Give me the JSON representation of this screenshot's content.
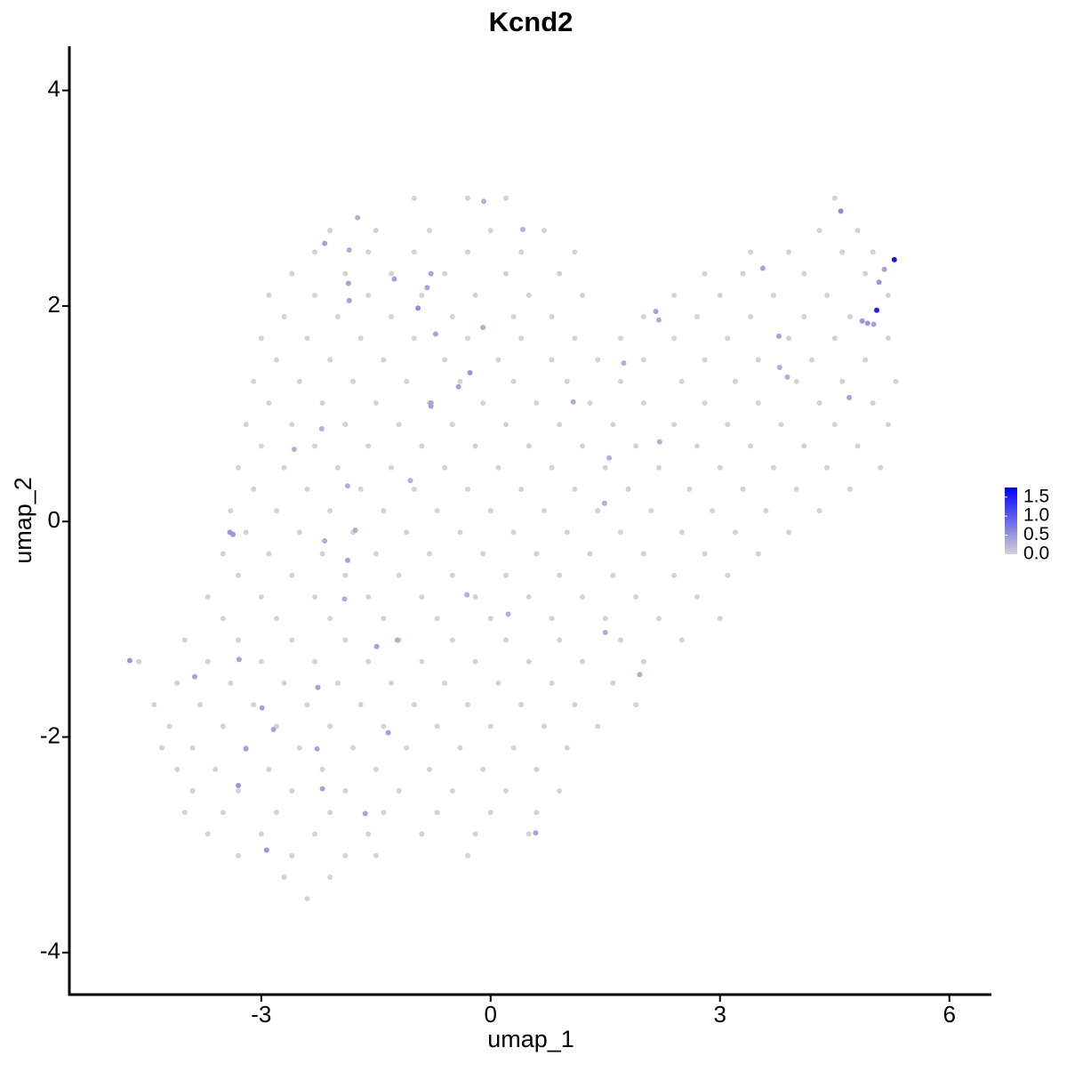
{
  "chart_data": {
    "type": "scatter",
    "title": "Kcnd2",
    "x_label": "umap_1",
    "y_label": "umap_2",
    "xlim": [
      -5.51,
      6.55
    ],
    "ylim": [
      -4.39,
      4.41
    ],
    "xticks": [
      -3,
      0,
      3,
      6
    ],
    "yticks": [
      -4,
      -2,
      0,
      2,
      4
    ],
    "color_low": "#d3d3d3",
    "color_high": "#0000ff",
    "clim": [
      0,
      1.75
    ],
    "colorbar_ticks": [
      {
        "value": 0,
        "label": "0.0"
      },
      0.5,
      {
        "value": 1,
        "label": "1.0"
      },
      1.5
    ],
    "x": [
      -1.0,
      -0.3,
      0.2,
      4.5,
      -2.1,
      -1.5,
      -0.8,
      0.0,
      0.7,
      4.3,
      4.8,
      -2.3,
      -1.6,
      -1.0,
      -0.3,
      0.4,
      1.1,
      3.4,
      3.9,
      4.6,
      5.0,
      -2.6,
      -1.9,
      -1.3,
      -0.6,
      0.2,
      0.9,
      2.8,
      3.3,
      4.1,
      4.9,
      -2.9,
      -2.3,
      -1.6,
      -0.9,
      -0.2,
      0.5,
      1.2,
      2.4,
      3.0,
      3.7,
      4.4,
      5.2,
      -2.7,
      -2.0,
      -1.3,
      -0.5,
      0.3,
      0.8,
      2.0,
      2.7,
      3.4,
      4.1,
      4.7,
      -3.0,
      -2.4,
      -1.7,
      -1.0,
      -0.3,
      0.4,
      1.1,
      1.7,
      2.4,
      3.1,
      3.9,
      4.5,
      5.2,
      -2.8,
      -2.1,
      -1.4,
      -0.6,
      0.1,
      0.8,
      1.4,
      2.0,
      2.8,
      3.5,
      4.2,
      4.9,
      -3.1,
      -2.5,
      -1.8,
      -1.1,
      -0.4,
      0.3,
      1.0,
      1.7,
      2.5,
      3.2,
      4.0,
      4.6,
      5.3,
      -2.9,
      -2.2,
      -1.5,
      -0.8,
      -0.1,
      0.6,
      1.3,
      2.0,
      2.8,
      3.5,
      4.3,
      5.0,
      -3.2,
      -2.6,
      -1.9,
      -1.2,
      -0.5,
      0.2,
      0.9,
      1.6,
      2.4,
      3.1,
      3.8,
      4.5,
      5.2,
      -3.0,
      -2.3,
      -1.6,
      -0.9,
      -0.2,
      0.5,
      1.2,
      1.9,
      2.7,
      3.4,
      4.1,
      4.8,
      -3.3,
      -2.7,
      -2.0,
      -1.3,
      -0.6,
      0.1,
      0.8,
      1.5,
      2.2,
      3.0,
      3.7,
      4.4,
      5.1,
      -3.1,
      -2.4,
      -1.7,
      -1.0,
      -0.3,
      0.4,
      1.1,
      1.8,
      2.6,
      3.3,
      4.0,
      4.7,
      -3.4,
      -2.8,
      -2.1,
      -1.4,
      -0.7,
      0.0,
      0.7,
      1.4,
      2.1,
      2.9,
      3.6,
      4.3,
      -3.2,
      -2.5,
      -1.8,
      -1.1,
      -0.4,
      0.3,
      1.0,
      1.7,
      2.5,
      3.2,
      3.9,
      -3.5,
      -2.9,
      -2.2,
      -1.5,
      -0.8,
      -0.1,
      0.6,
      1.3,
      2.0,
      2.8,
      3.5,
      -3.3,
      -2.6,
      -1.9,
      -1.2,
      -0.5,
      0.2,
      0.9,
      1.6,
      2.4,
      3.1,
      -3.7,
      -3.0,
      -2.3,
      -1.6,
      -0.9,
      -0.2,
      0.5,
      1.2,
      1.9,
      2.7,
      -3.5,
      -2.8,
      -2.1,
      -1.4,
      -0.7,
      0.0,
      0.8,
      1.5,
      2.2,
      3.0,
      -4.0,
      -3.3,
      -2.6,
      -1.9,
      -1.2,
      -0.5,
      0.2,
      0.9,
      1.7,
      2.5,
      -4.6,
      -3.7,
      -3.0,
      -2.3,
      -1.6,
      -0.9,
      -0.2,
      0.5,
      1.2,
      2.0,
      -4.1,
      -3.4,
      -2.7,
      -2.0,
      -1.3,
      -0.6,
      0.1,
      0.8,
      1.6,
      -4.4,
      -3.8,
      -3.1,
      -2.4,
      -1.7,
      -1.0,
      -0.3,
      0.4,
      1.1,
      1.9,
      -4.2,
      -3.5,
      -2.8,
      -2.1,
      -1.4,
      -0.7,
      0.0,
      0.7,
      1.4,
      -4.3,
      -3.9,
      -3.2,
      -2.5,
      -1.8,
      -1.1,
      -0.4,
      0.3,
      1.0,
      -4.1,
      -3.6,
      -2.9,
      -2.2,
      -1.5,
      -0.8,
      -0.1,
      0.6,
      -3.9,
      -3.3,
      -2.6,
      -1.9,
      -1.2,
      -0.5,
      0.2,
      0.9,
      -4.0,
      -3.5,
      -2.8,
      -2.1,
      -1.4,
      -0.7,
      0.0,
      0.6,
      -3.7,
      -3.0,
      -2.3,
      -1.6,
      -0.9,
      -0.2,
      0.5,
      -3.3,
      -2.6,
      -1.9,
      -1.5,
      -0.3,
      -2.7,
      -2.1,
      -2.4,
      -4.72,
      -3.41,
      -3.37,
      -3.87,
      -3.29,
      -2.99,
      -2.84,
      -3.2,
      -3.3,
      -2.93,
      -2.26,
      -2.27,
      -2.2,
      -1.64,
      -1.34,
      -1.49,
      -1.22,
      -1.87,
      -1.91,
      -1.77,
      -2.17,
      -1.87,
      -2.57,
      -2.21,
      -1.05,
      -1.86,
      -1.85,
      -2.17,
      -1.85,
      -1.74,
      -1.26,
      -0.95,
      -0.78,
      -0.83,
      -0.72,
      -0.78,
      -0.78,
      -0.27,
      -0.42,
      -0.1,
      -0.09,
      0.42,
      -0.31,
      0.23,
      0.59,
      1.5,
      1.95,
      1.49,
      1.55,
      1.08,
      2.21,
      1.74,
      2.16,
      2.2,
      3.56,
      3.77,
      3.78,
      3.88,
      4.69,
      4.58,
      5.08,
      5.15,
      4.86,
      4.93,
      5.01,
      5.05,
      5.28
    ],
    "y": [
      3.0,
      3.0,
      3.0,
      3.0,
      2.7,
      2.7,
      2.7,
      2.7,
      2.7,
      2.7,
      2.7,
      2.5,
      2.5,
      2.5,
      2.5,
      2.5,
      2.5,
      2.5,
      2.5,
      2.5,
      2.5,
      2.3,
      2.3,
      2.3,
      2.3,
      2.3,
      2.3,
      2.3,
      2.3,
      2.3,
      2.3,
      2.1,
      2.1,
      2.1,
      2.1,
      2.1,
      2.1,
      2.1,
      2.1,
      2.1,
      2.1,
      2.1,
      2.1,
      1.9,
      1.9,
      1.9,
      1.9,
      1.9,
      1.9,
      1.9,
      1.9,
      1.9,
      1.9,
      1.9,
      1.7,
      1.7,
      1.7,
      1.7,
      1.7,
      1.7,
      1.7,
      1.7,
      1.7,
      1.7,
      1.7,
      1.7,
      1.7,
      1.5,
      1.5,
      1.5,
      1.5,
      1.5,
      1.5,
      1.5,
      1.5,
      1.5,
      1.5,
      1.5,
      1.5,
      1.3,
      1.3,
      1.3,
      1.3,
      1.3,
      1.3,
      1.3,
      1.3,
      1.3,
      1.3,
      1.3,
      1.3,
      1.3,
      1.1,
      1.1,
      1.1,
      1.1,
      1.1,
      1.1,
      1.1,
      1.1,
      1.1,
      1.1,
      1.1,
      1.1,
      0.9,
      0.9,
      0.9,
      0.9,
      0.9,
      0.9,
      0.9,
      0.9,
      0.9,
      0.9,
      0.9,
      0.9,
      0.9,
      0.7,
      0.7,
      0.7,
      0.7,
      0.7,
      0.7,
      0.7,
      0.7,
      0.7,
      0.7,
      0.7,
      0.7,
      0.5,
      0.5,
      0.5,
      0.5,
      0.5,
      0.5,
      0.5,
      0.5,
      0.5,
      0.5,
      0.5,
      0.5,
      0.5,
      0.3,
      0.3,
      0.3,
      0.3,
      0.3,
      0.3,
      0.3,
      0.3,
      0.3,
      0.3,
      0.3,
      0.3,
      0.1,
      0.1,
      0.1,
      0.1,
      0.1,
      0.1,
      0.1,
      0.1,
      0.1,
      0.1,
      0.1,
      0.1,
      -0.1,
      -0.1,
      -0.1,
      -0.1,
      -0.1,
      -0.1,
      -0.1,
      -0.1,
      -0.1,
      -0.1,
      -0.1,
      -0.3,
      -0.3,
      -0.3,
      -0.3,
      -0.3,
      -0.3,
      -0.3,
      -0.3,
      -0.3,
      -0.3,
      -0.3,
      -0.5,
      -0.5,
      -0.5,
      -0.5,
      -0.5,
      -0.5,
      -0.5,
      -0.5,
      -0.5,
      -0.5,
      -0.7,
      -0.7,
      -0.7,
      -0.7,
      -0.7,
      -0.7,
      -0.7,
      -0.7,
      -0.7,
      -0.7,
      -0.9,
      -0.9,
      -0.9,
      -0.9,
      -0.9,
      -0.9,
      -0.9,
      -0.9,
      -0.9,
      -0.9,
      -1.1,
      -1.1,
      -1.1,
      -1.1,
      -1.1,
      -1.1,
      -1.1,
      -1.1,
      -1.1,
      -1.1,
      -1.3,
      -1.3,
      -1.3,
      -1.3,
      -1.3,
      -1.3,
      -1.3,
      -1.3,
      -1.3,
      -1.3,
      -1.5,
      -1.5,
      -1.5,
      -1.5,
      -1.5,
      -1.5,
      -1.5,
      -1.5,
      -1.5,
      -1.7,
      -1.7,
      -1.7,
      -1.7,
      -1.7,
      -1.7,
      -1.7,
      -1.7,
      -1.7,
      -1.7,
      -1.9,
      -1.9,
      -1.9,
      -1.9,
      -1.9,
      -1.9,
      -1.9,
      -1.9,
      -1.9,
      -2.1,
      -2.1,
      -2.1,
      -2.1,
      -2.1,
      -2.1,
      -2.1,
      -2.1,
      -2.1,
      -2.3,
      -2.3,
      -2.3,
      -2.3,
      -2.3,
      -2.3,
      -2.3,
      -2.3,
      -2.5,
      -2.5,
      -2.5,
      -2.5,
      -2.5,
      -2.5,
      -2.5,
      -2.5,
      -2.7,
      -2.7,
      -2.7,
      -2.7,
      -2.7,
      -2.7,
      -2.7,
      -2.7,
      -2.9,
      -2.9,
      -2.9,
      -2.9,
      -2.9,
      -2.9,
      -2.9,
      -3.1,
      -3.1,
      -3.1,
      -3.1,
      -3.1,
      -3.3,
      -3.3,
      -3.5,
      -1.29,
      -0.1,
      -0.12,
      -1.44,
      -1.28,
      -1.73,
      -1.93,
      -2.11,
      -2.45,
      -3.05,
      -1.54,
      -2.11,
      -2.48,
      -2.71,
      -1.96,
      -1.16,
      -1.1,
      -0.36,
      -0.72,
      -0.08,
      -0.18,
      0.33,
      0.67,
      0.86,
      0.38,
      2.21,
      2.05,
      2.58,
      2.52,
      2.82,
      2.25,
      1.98,
      2.3,
      2.17,
      1.74,
      1.1,
      1.07,
      1.38,
      1.25,
      1.8,
      2.97,
      2.71,
      -0.68,
      -0.86,
      -2.89,
      -1.03,
      -1.42,
      0.17,
      0.59,
      1.11,
      0.74,
      1.47,
      1.95,
      1.87,
      2.35,
      1.72,
      1.43,
      1.34,
      1.15,
      2.88,
      2.22,
      2.34,
      1.86,
      1.84,
      1.83,
      1.96,
      2.43
    ],
    "values": [
      0,
      0,
      0,
      0,
      0,
      0,
      0,
      0,
      0,
      0,
      0,
      0,
      0,
      0,
      0,
      0,
      0,
      0,
      0,
      0,
      0,
      0,
      0,
      0,
      0,
      0,
      0,
      0,
      0,
      0,
      0,
      0,
      0,
      0,
      0,
      0,
      0,
      0,
      0,
      0,
      0,
      0,
      0,
      0,
      0,
      0,
      0,
      0,
      0,
      0,
      0,
      0,
      0,
      0,
      0,
      0,
      0,
      0,
      0,
      0,
      0,
      0,
      0,
      0,
      0,
      0,
      0,
      0,
      0,
      0,
      0,
      0,
      0,
      0,
      0,
      0,
      0,
      0,
      0,
      0,
      0,
      0,
      0,
      0,
      0,
      0,
      0,
      0,
      0,
      0,
      0,
      0,
      0,
      0,
      0,
      0,
      0,
      0,
      0,
      0,
      0,
      0,
      0,
      0,
      0,
      0,
      0,
      0,
      0,
      0,
      0,
      0,
      0,
      0,
      0,
      0,
      0,
      0,
      0,
      0,
      0,
      0,
      0,
      0,
      0,
      0,
      0,
      0,
      0,
      0,
      0,
      0,
      0,
      0,
      0,
      0,
      0,
      0,
      0,
      0,
      0,
      0,
      0,
      0,
      0,
      0,
      0,
      0,
      0,
      0,
      0,
      0,
      0,
      0,
      0,
      0,
      0,
      0,
      0,
      0,
      0,
      0,
      0,
      0,
      0,
      0,
      0,
      0,
      0,
      0,
      0,
      0,
      0,
      0,
      0,
      0,
      0,
      0,
      0,
      0,
      0,
      0,
      0,
      0,
      0,
      0,
      0,
      0,
      0,
      0,
      0,
      0,
      0,
      0,
      0,
      0,
      0,
      0,
      0,
      0,
      0,
      0,
      0,
      0,
      0,
      0,
      0,
      0,
      0,
      0,
      0,
      0,
      0,
      0,
      0,
      0,
      0,
      0,
      0,
      0,
      0,
      0,
      0,
      0,
      0,
      0,
      0,
      0,
      0,
      0,
      0,
      0,
      0,
      0,
      0,
      0,
      0,
      0,
      0,
      0,
      0,
      0,
      0,
      0,
      0,
      0,
      0,
      0,
      0,
      0,
      0,
      0,
      0,
      0,
      0,
      0,
      0,
      0,
      0,
      0,
      0,
      0,
      0,
      0,
      0,
      0,
      0,
      0,
      0,
      0,
      0,
      0,
      0,
      0,
      0,
      0,
      0,
      0,
      0,
      0,
      0,
      0,
      0,
      0,
      0,
      0,
      0,
      0,
      0,
      0,
      0,
      0,
      0,
      0,
      0,
      0,
      0,
      0,
      0,
      0,
      0,
      0,
      0,
      0,
      0,
      0,
      0,
      0,
      0,
      0,
      0,
      0,
      0,
      0,
      0.5,
      0.5,
      0.5,
      0.4,
      0.4,
      0.4,
      0.4,
      0.4,
      0.5,
      0.5,
      0.4,
      0.4,
      0.4,
      0.4,
      0.4,
      0.4,
      0.3,
      0.4,
      0.3,
      0.3,
      0.3,
      0.3,
      0.3,
      0.3,
      0.3,
      0.4,
      0.4,
      0.4,
      0.3,
      0.3,
      0.4,
      0.6,
      0.4,
      0.4,
      0.4,
      0.4,
      0.4,
      0.5,
      0.4,
      0.3,
      0.3,
      0.3,
      0.3,
      0.3,
      0.4,
      0.3,
      0.3,
      0.3,
      0.3,
      0.3,
      0.3,
      0.3,
      0.4,
      0.3,
      0.4,
      0.4,
      0.3,
      0.3,
      0.4,
      0.6,
      0.5,
      0.4,
      0.5,
      0.5,
      0.4,
      1.5,
      1.6
    ]
  }
}
